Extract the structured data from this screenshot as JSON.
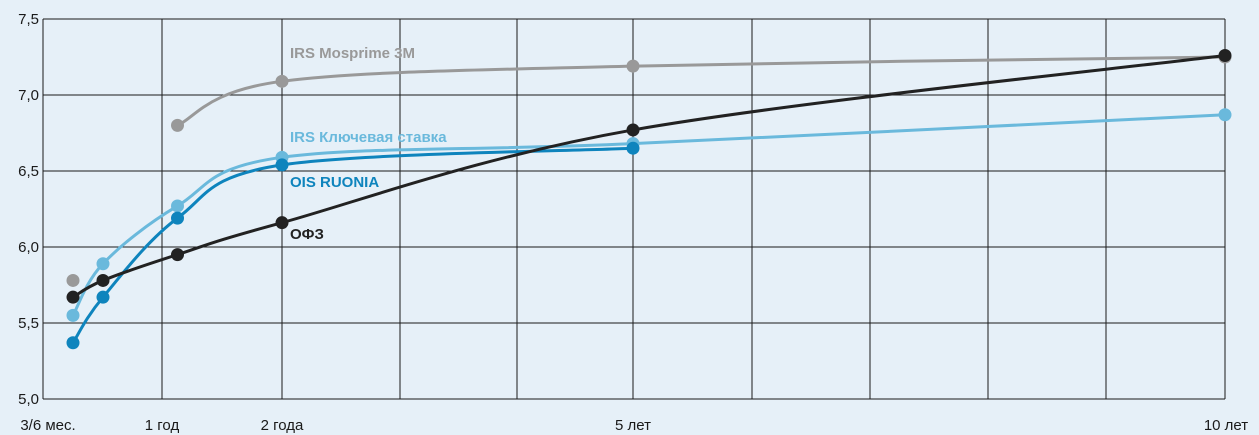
{
  "chart_data": {
    "type": "line",
    "title": "",
    "xlabel": "",
    "ylabel": "",
    "ylim": [
      5.0,
      7.5
    ],
    "yticks": [
      "5,0",
      "5,5",
      "6,0",
      "6,5",
      "7,0",
      "7,5"
    ],
    "ytick_values": [
      5.0,
      5.5,
      6.0,
      6.5,
      7.0,
      7.5
    ],
    "xlim": [
      0,
      10
    ],
    "xtick_labels": [
      {
        "x": 0,
        "label": "3/6 мес."
      },
      {
        "x": 1,
        "label": "1 год"
      },
      {
        "x": 2,
        "label": "2 года"
      },
      {
        "x": 5,
        "label": "5 лет"
      },
      {
        "x": 10,
        "label": "10 лет"
      }
    ],
    "grid": true,
    "series": [
      {
        "name": "IRS Mosprime 3M",
        "color": "#999999",
        "points": [
          [
            1,
            6.8
          ],
          [
            2,
            7.09
          ],
          [
            5,
            7.19
          ],
          [
            10,
            7.25
          ]
        ],
        "extra_points": [
          [
            0,
            5.78
          ]
        ]
      },
      {
        "name": "IRS Ключевая ставка",
        "color": "#6ab9dc",
        "points": [
          [
            0,
            5.55
          ],
          [
            0.25,
            5.89
          ],
          [
            1,
            6.27
          ],
          [
            2,
            6.59
          ],
          [
            5,
            6.68
          ],
          [
            10,
            6.87
          ]
        ]
      },
      {
        "name": "OIS RUONIA",
        "color": "#0e84bd",
        "points": [
          [
            0,
            5.37
          ],
          [
            0.25,
            5.67
          ],
          [
            1,
            6.19
          ],
          [
            2,
            6.54
          ],
          [
            5,
            6.65
          ]
        ]
      },
      {
        "name": "ОФЗ",
        "color": "#222222",
        "points": [
          [
            0,
            5.67
          ],
          [
            0.25,
            5.78
          ],
          [
            1,
            5.95
          ],
          [
            2,
            6.16
          ],
          [
            5,
            6.77
          ],
          [
            10,
            7.26
          ]
        ]
      }
    ]
  }
}
